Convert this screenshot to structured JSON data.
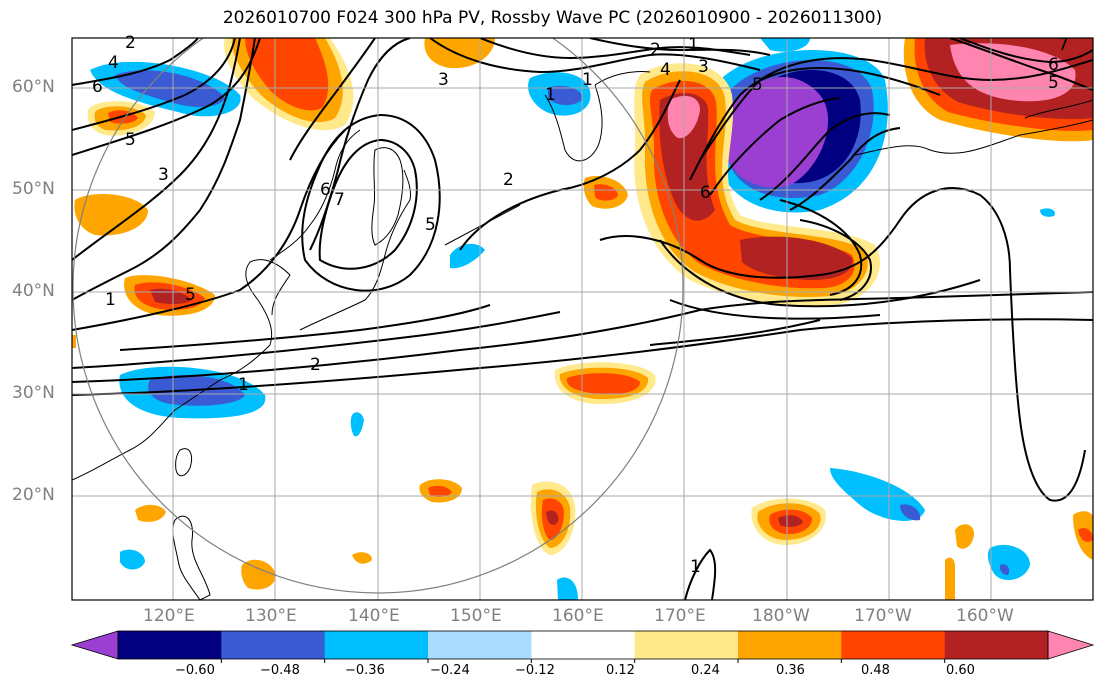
{
  "title": "2026010700 F024 300 hPa PV, Rossby Wave PC (2026010900 - 2026011300)",
  "lat_labels": [
    "60°N",
    "50°N",
    "40°N",
    "30°N",
    "20°N"
  ],
  "lon_labels": [
    "120°E",
    "130°E",
    "140°E",
    "150°E",
    "160°E",
    "170°E",
    "180°W",
    "170°W",
    "160°W"
  ],
  "colorbar": {
    "colors": [
      "#9a3fd1",
      "#000080",
      "#3a5bd4",
      "#00bfff",
      "#aadcff",
      "#ffffff",
      "#ffe98a",
      "#ffa500",
      "#ff4500",
      "#b22222",
      "#ff85b0"
    ],
    "ticks": [
      "−0.60",
      "−0.48",
      "−0.36",
      "−0.24",
      "−0.12",
      "0.12",
      "0.24",
      "0.36",
      "0.48",
      "0.60"
    ]
  },
  "contour_labels": [
    "2",
    "4",
    "6",
    "5",
    "3",
    "1",
    "7",
    "6",
    "5",
    "2",
    "1",
    "2",
    "3",
    "3",
    "4",
    "5",
    "1",
    "2",
    "1",
    "6",
    "5",
    "7",
    "6",
    "5",
    "1",
    "1"
  ]
}
